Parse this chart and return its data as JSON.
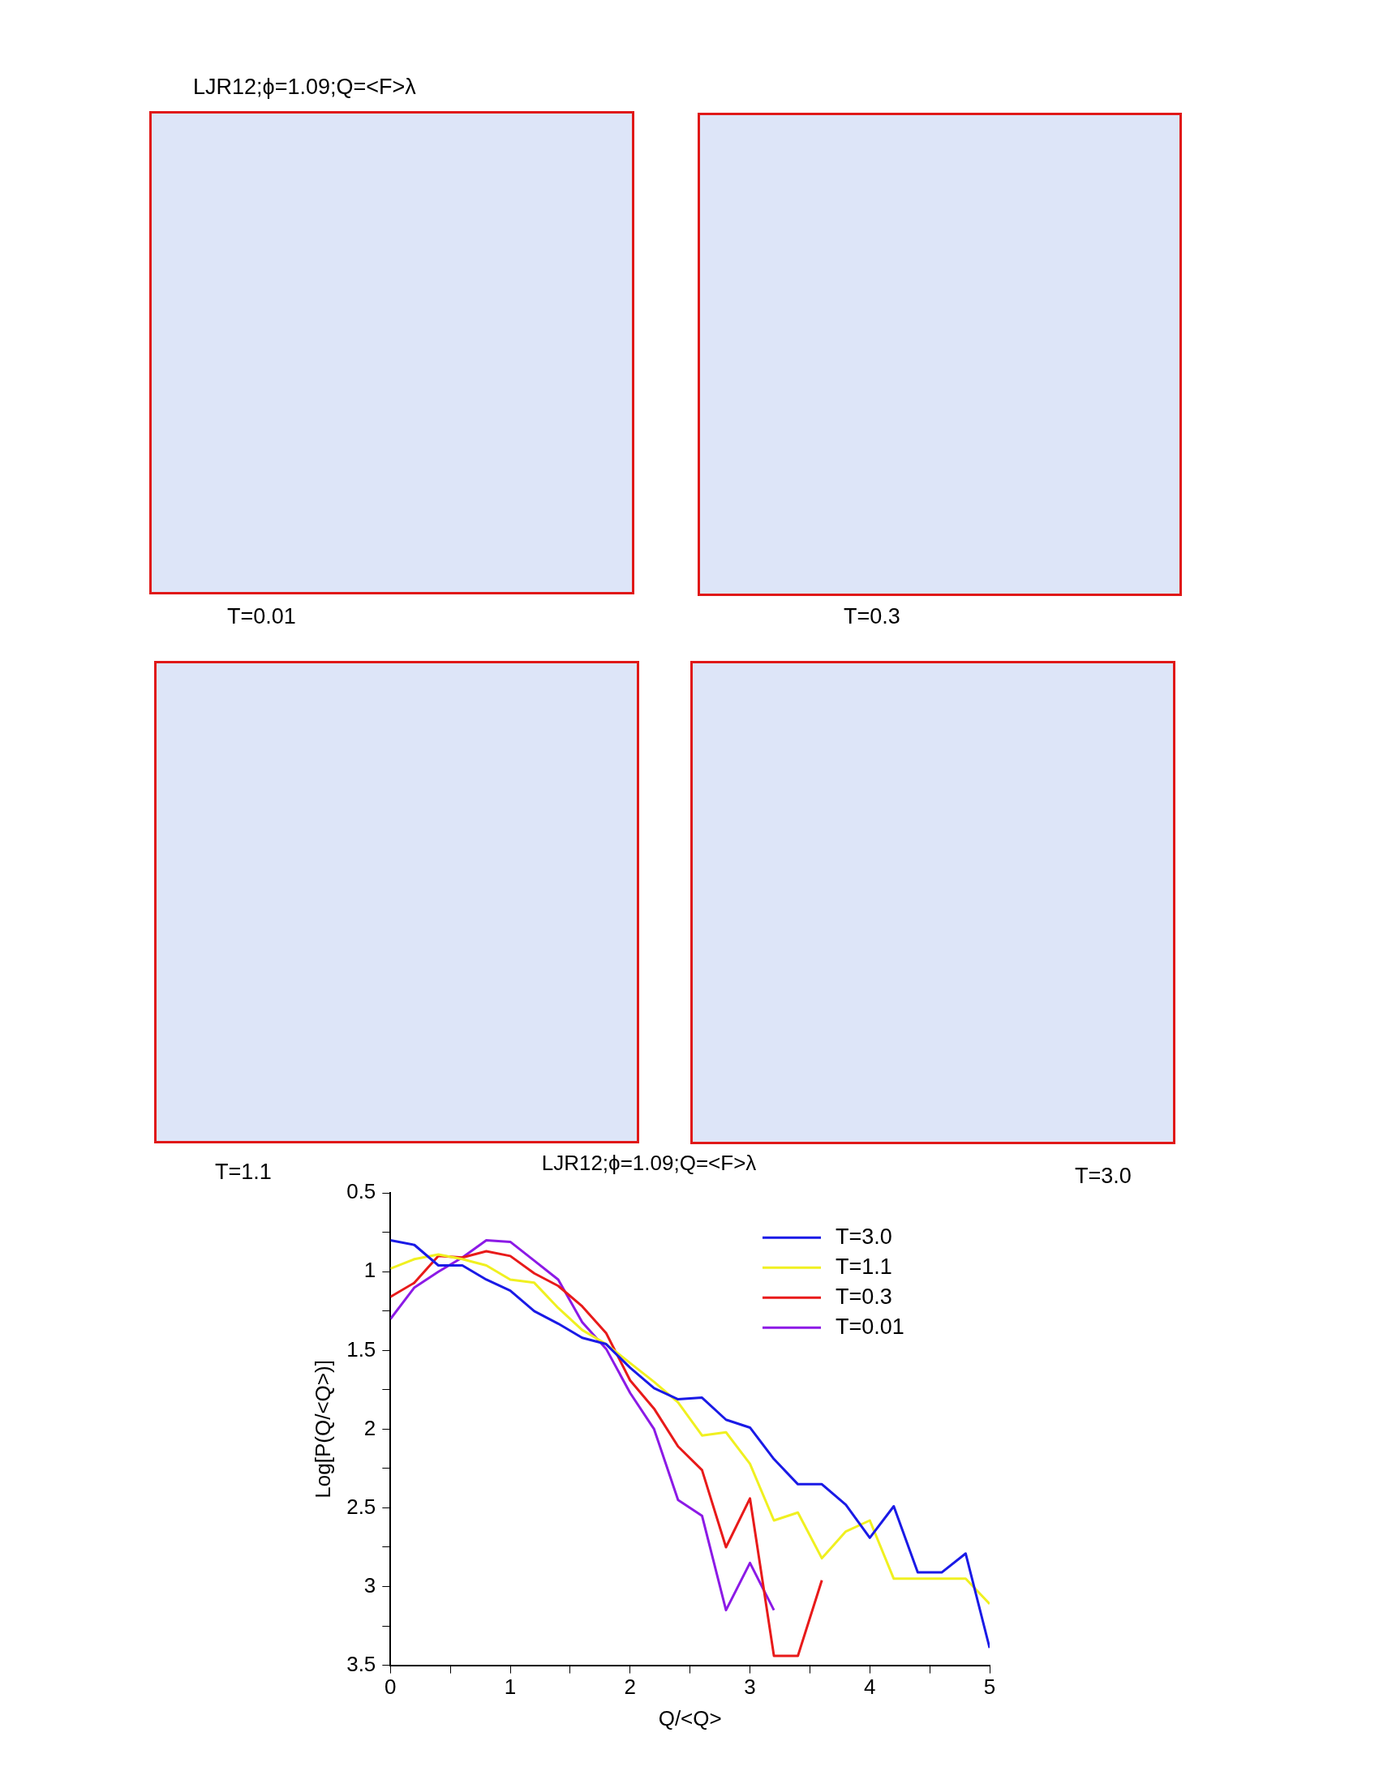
{
  "chart_data": {
    "type": "line",
    "title": "LJR12;ϕ=1.09;Q=<F>λ",
    "xlabel": "Q/<Q>",
    "ylabel": "Log[P(Q/<Q>)]",
    "annotations": [
      "LJR12;ϕ=1.09;Q=<F>λ",
      "T=0.01",
      "T=0.3",
      "T=1.1",
      "T=3.0"
    ],
    "x": [
      0,
      0.2,
      0.4,
      0.6,
      0.8,
      1,
      1.2,
      1.4,
      1.6,
      1.8,
      2,
      2.2,
      2.4,
      2.6,
      2.8,
      3,
      3.2,
      3.4,
      3.6,
      3.8,
      4,
      4.2,
      4.4,
      4.6,
      4.8,
      5
    ],
    "series": [
      {
        "name": "T=3.0",
        "color": "#1a1ae6",
        "values": [
          0.8,
          0.83,
          0.96,
          0.96,
          1.05,
          1.12,
          1.25,
          1.33,
          1.42,
          1.46,
          1.61,
          1.74,
          1.81,
          1.8,
          1.94,
          1.99,
          2.19,
          2.35,
          2.35,
          2.48,
          2.69,
          2.49,
          2.91,
          2.91,
          2.79,
          3.39
        ]
      },
      {
        "name": "T=1.1",
        "color": "#f0f020",
        "values": [
          0.98,
          0.92,
          0.89,
          0.92,
          0.96,
          1.05,
          1.07,
          1.23,
          1.37,
          1.46,
          1.58,
          1.7,
          1.83,
          2.04,
          2.02,
          2.22,
          2.58,
          2.53,
          2.82,
          2.65,
          2.58,
          2.95,
          2.95,
          2.95,
          2.95,
          3.11
        ]
      },
      {
        "name": "T=0.3",
        "color": "#e81a1a",
        "values": [
          1.16,
          1.07,
          0.9,
          0.91,
          0.87,
          0.9,
          1.01,
          1.09,
          1.22,
          1.39,
          1.69,
          1.87,
          2.11,
          2.26,
          2.75,
          2.44,
          3.44,
          3.44,
          2.96,
          null,
          null,
          null,
          null,
          null,
          null,
          null
        ]
      },
      {
        "name": "T=0.01",
        "color": "#8c1ae6",
        "values": [
          1.3,
          1.1,
          1.0,
          0.91,
          0.8,
          0.81,
          0.93,
          1.05,
          1.32,
          1.49,
          1.77,
          2.0,
          2.45,
          2.55,
          3.15,
          2.85,
          3.15,
          null,
          null,
          null,
          null,
          null,
          null,
          null,
          null,
          null
        ]
      }
    ],
    "xlim": [
      0,
      5
    ],
    "xticks": [
      0,
      {
        "value": 0.5,
        "label": null
      },
      1,
      {
        "value": 1.5,
        "label": null
      },
      2,
      {
        "value": 2.5,
        "label": null
      },
      3,
      {
        "value": 3.5,
        "label": null
      },
      4,
      {
        "value": 4.5,
        "label": null
      },
      5
    ],
    "ylim": [
      3.5,
      0.5
    ],
    "yticks": [
      0.5,
      {
        "value": 0.75,
        "label": null
      },
      1,
      {
        "value": 1.25,
        "label": null
      },
      1.5,
      {
        "value": 1.75,
        "label": null
      },
      2,
      {
        "value": 2.25,
        "label": null
      },
      2.5,
      {
        "value": 2.75,
        "label": null
      },
      3,
      {
        "value": 3.25,
        "label": null
      },
      3.5
    ],
    "grid": false,
    "legend": "top right",
    "marker": "none",
    "line_style": "solid"
  }
}
